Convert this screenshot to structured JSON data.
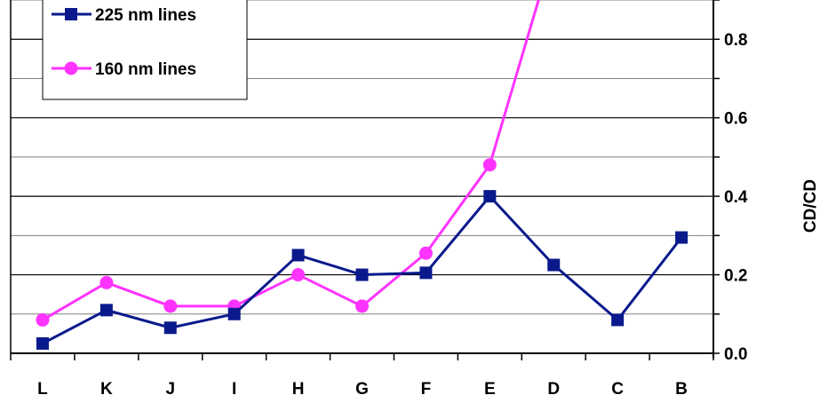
{
  "chart_data": {
    "type": "line",
    "categories": [
      "L",
      "K",
      "J",
      "I",
      "H",
      "G",
      "F",
      "E",
      "D",
      "C",
      "B"
    ],
    "series": [
      {
        "name": "225 nm lines",
        "color": "#0a1a8c",
        "marker": "square",
        "values": [
          0.025,
          0.11,
          0.065,
          0.1,
          0.25,
          0.2,
          0.205,
          0.4,
          0.225,
          0.085,
          0.295
        ]
      },
      {
        "name": "160 nm lines",
        "color": "#ff33ff",
        "marker": "circle",
        "values": [
          0.085,
          0.18,
          0.12,
          0.12,
          0.2,
          0.12,
          0.255,
          0.48,
          1.03,
          null,
          null
        ]
      }
    ],
    "ylabel": "CD/CD",
    "ylim": [
      0,
      0.9
    ],
    "yticks": [
      "0.0",
      "0.2",
      "0.4",
      "0.6",
      "0.8"
    ],
    "ytick_values": [
      0,
      0.2,
      0.4,
      0.6,
      0.8
    ],
    "minor_grid_values": [
      0.1,
      0.3,
      0.5,
      0.7,
      0.9
    ],
    "grid": true,
    "yaxis_side": "right",
    "legend_position": "top-left"
  }
}
